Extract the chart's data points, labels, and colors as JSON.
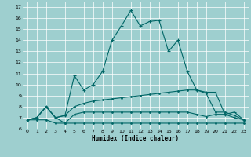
{
  "xlabel": "Humidex (Indice chaleur)",
  "xlim": [
    -0.5,
    23.5
  ],
  "ylim": [
    6,
    17.5
  ],
  "xticks": [
    0,
    1,
    2,
    3,
    4,
    5,
    6,
    7,
    8,
    9,
    10,
    11,
    12,
    13,
    14,
    15,
    16,
    17,
    18,
    19,
    20,
    21,
    22,
    23
  ],
  "yticks": [
    6,
    7,
    8,
    9,
    10,
    11,
    12,
    13,
    14,
    15,
    16,
    17
  ],
  "bg_color": "#9ecfcf",
  "grid_color": "#ffffff",
  "line_color": "#006666",
  "line1_x": [
    0,
    1,
    2,
    3,
    4,
    5,
    6,
    7,
    8,
    9,
    10,
    11,
    12,
    13,
    14,
    15,
    16,
    17,
    18,
    19,
    20,
    21,
    22,
    23
  ],
  "line1_y": [
    6.8,
    7.0,
    8.0,
    7.0,
    7.2,
    10.8,
    9.5,
    10.0,
    11.2,
    14.0,
    15.3,
    16.7,
    15.3,
    15.7,
    15.8,
    13.0,
    14.0,
    11.2,
    9.5,
    9.3,
    9.3,
    7.3,
    7.5,
    6.8
  ],
  "line2_x": [
    0,
    1,
    2,
    3,
    4,
    5,
    6,
    7,
    8,
    9,
    10,
    11,
    12,
    13,
    14,
    15,
    16,
    17,
    18,
    19,
    20,
    21,
    22,
    23
  ],
  "line2_y": [
    6.8,
    7.0,
    8.0,
    7.0,
    7.2,
    8.0,
    8.3,
    8.5,
    8.6,
    8.7,
    8.8,
    8.9,
    9.0,
    9.1,
    9.2,
    9.3,
    9.4,
    9.5,
    9.5,
    9.2,
    7.5,
    7.5,
    7.2,
    6.8
  ],
  "line3_x": [
    0,
    1,
    2,
    3,
    4,
    5,
    6,
    7,
    8,
    9,
    10,
    11,
    12,
    13,
    14,
    15,
    16,
    17,
    18,
    19,
    20,
    21,
    22,
    23
  ],
  "line3_y": [
    6.8,
    7.0,
    8.0,
    7.0,
    6.5,
    7.3,
    7.5,
    7.5,
    7.5,
    7.5,
    7.5,
    7.5,
    7.5,
    7.5,
    7.5,
    7.5,
    7.5,
    7.5,
    7.3,
    7.1,
    7.3,
    7.3,
    7.0,
    6.8
  ],
  "line4_x": [
    0,
    1,
    2,
    3,
    4,
    5,
    6,
    7,
    8,
    9,
    10,
    11,
    12,
    13,
    14,
    15,
    16,
    17,
    18,
    19,
    20,
    21,
    22,
    23
  ],
  "line4_y": [
    6.8,
    6.8,
    6.8,
    6.5,
    6.5,
    6.5,
    6.5,
    6.5,
    6.5,
    6.5,
    6.5,
    6.5,
    6.5,
    6.5,
    6.5,
    6.5,
    6.5,
    6.5,
    6.5,
    6.5,
    6.5,
    6.5,
    6.5,
    6.5
  ]
}
